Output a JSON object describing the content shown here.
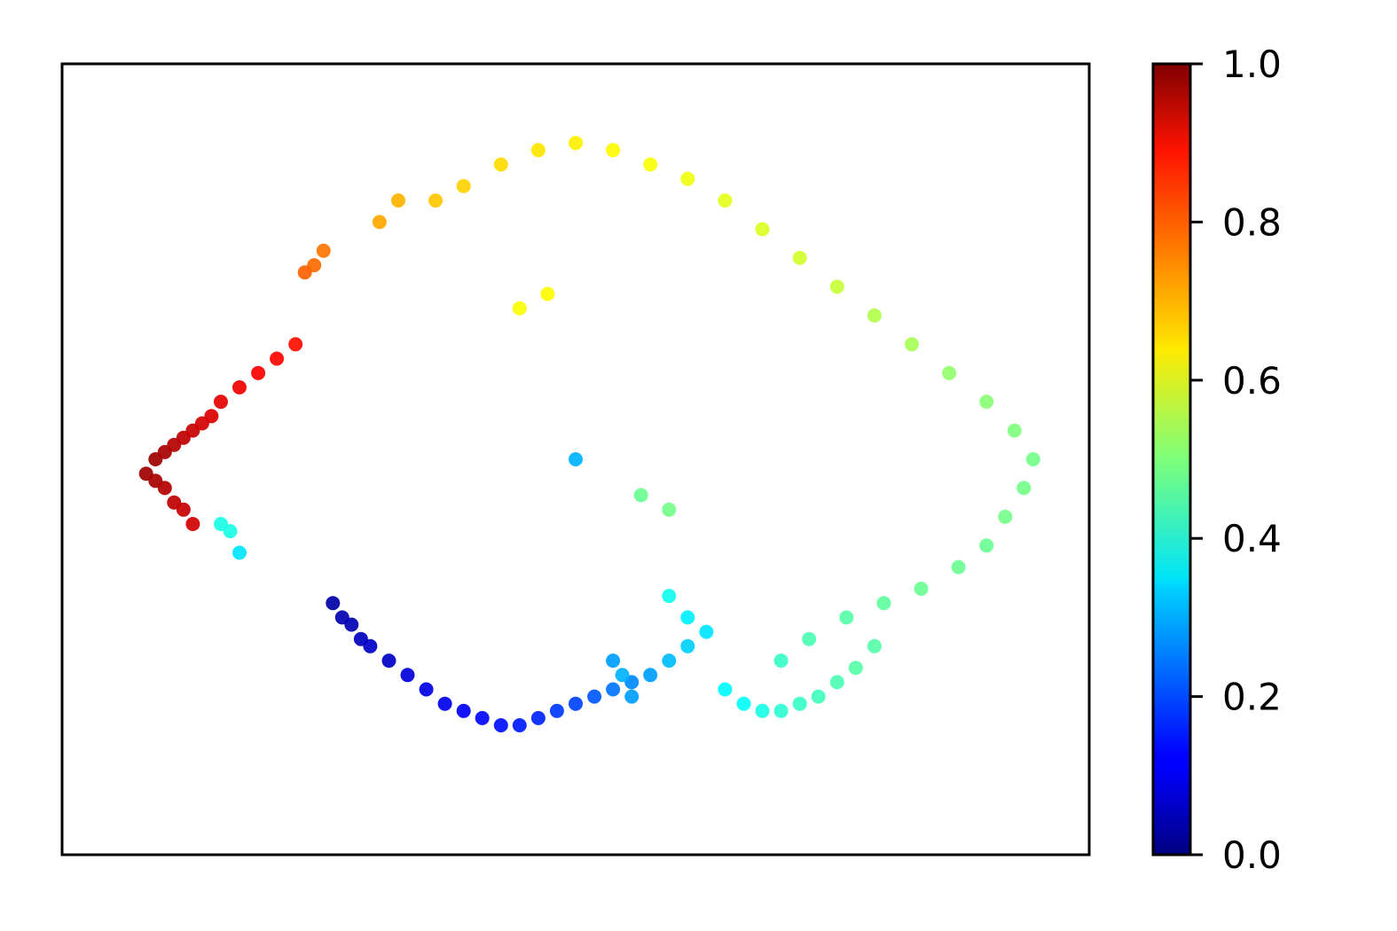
{
  "chart_data": {
    "type": "scatter",
    "title": "",
    "xlabel": "",
    "ylabel": "",
    "xticks": [],
    "yticks": [],
    "xlim": [
      -0.05,
      1.05
    ],
    "ylim": [
      -0.05,
      1.05
    ],
    "grid": false,
    "colormap": "jet",
    "colorbar": {
      "range": [
        0.0,
        1.0
      ],
      "ticks": [
        "0.0",
        "0.2",
        "0.4",
        "0.6",
        "0.8",
        "1.0"
      ],
      "position": "right"
    },
    "point_color_hint": "points colored by value along the trajectory: dark blue (0.0) at the bottom-left arc, through cyan/green on the right lobe, yellow at the top, orange and red (1.0) on the left arc",
    "series": [
      {
        "points": [
          [
            0.04,
            0.48,
            0.97
          ],
          [
            0.05,
            0.47,
            0.96
          ],
          [
            0.06,
            0.46,
            0.95
          ],
          [
            0.07,
            0.44,
            0.94
          ],
          [
            0.08,
            0.43,
            0.93
          ],
          [
            0.09,
            0.41,
            0.92
          ],
          [
            0.05,
            0.5,
            0.97
          ],
          [
            0.06,
            0.51,
            0.96
          ],
          [
            0.07,
            0.52,
            0.95
          ],
          [
            0.08,
            0.53,
            0.94
          ],
          [
            0.09,
            0.54,
            0.93
          ],
          [
            0.1,
            0.55,
            0.92
          ],
          [
            0.11,
            0.56,
            0.91
          ],
          [
            0.12,
            0.58,
            0.9
          ],
          [
            0.14,
            0.6,
            0.89
          ],
          [
            0.16,
            0.62,
            0.88
          ],
          [
            0.18,
            0.64,
            0.87
          ],
          [
            0.2,
            0.66,
            0.86
          ],
          [
            0.12,
            0.41,
            0.4
          ],
          [
            0.13,
            0.4,
            0.4
          ],
          [
            0.14,
            0.37,
            0.35
          ],
          [
            0.24,
            0.3,
            0.04
          ],
          [
            0.25,
            0.28,
            0.05
          ],
          [
            0.26,
            0.27,
            0.05
          ],
          [
            0.27,
            0.25,
            0.06
          ],
          [
            0.28,
            0.24,
            0.07
          ],
          [
            0.3,
            0.22,
            0.07
          ],
          [
            0.32,
            0.2,
            0.09
          ],
          [
            0.34,
            0.18,
            0.1
          ],
          [
            0.36,
            0.16,
            0.11
          ],
          [
            0.38,
            0.15,
            0.12
          ],
          [
            0.4,
            0.14,
            0.13
          ],
          [
            0.42,
            0.13,
            0.14
          ],
          [
            0.44,
            0.13,
            0.15
          ],
          [
            0.46,
            0.14,
            0.16
          ],
          [
            0.48,
            0.15,
            0.18
          ],
          [
            0.5,
            0.16,
            0.19
          ],
          [
            0.52,
            0.17,
            0.21
          ],
          [
            0.54,
            0.18,
            0.24
          ],
          [
            0.56,
            0.19,
            0.26
          ],
          [
            0.58,
            0.2,
            0.28
          ],
          [
            0.6,
            0.22,
            0.31
          ],
          [
            0.62,
            0.24,
            0.33
          ],
          [
            0.64,
            0.26,
            0.35
          ],
          [
            0.56,
            0.17,
            0.28
          ],
          [
            0.55,
            0.2,
            0.3
          ],
          [
            0.54,
            0.22,
            0.28
          ],
          [
            0.66,
            0.18,
            0.37
          ],
          [
            0.68,
            0.16,
            0.38
          ],
          [
            0.7,
            0.15,
            0.4
          ],
          [
            0.72,
            0.15,
            0.42
          ],
          [
            0.74,
            0.16,
            0.43
          ],
          [
            0.76,
            0.17,
            0.44
          ],
          [
            0.78,
            0.19,
            0.45
          ],
          [
            0.8,
            0.21,
            0.46
          ],
          [
            0.82,
            0.24,
            0.46
          ],
          [
            0.72,
            0.22,
            0.43
          ],
          [
            0.75,
            0.25,
            0.45
          ],
          [
            0.79,
            0.28,
            0.46
          ],
          [
            0.83,
            0.3,
            0.47
          ],
          [
            0.87,
            0.32,
            0.48
          ],
          [
            0.91,
            0.35,
            0.48
          ],
          [
            0.94,
            0.38,
            0.48
          ],
          [
            0.96,
            0.42,
            0.49
          ],
          [
            0.98,
            0.46,
            0.49
          ],
          [
            0.99,
            0.5,
            0.49
          ],
          [
            0.97,
            0.54,
            0.5
          ],
          [
            0.94,
            0.58,
            0.51
          ],
          [
            0.9,
            0.62,
            0.52
          ],
          [
            0.86,
            0.66,
            0.54
          ],
          [
            0.82,
            0.7,
            0.55
          ],
          [
            0.78,
            0.74,
            0.57
          ],
          [
            0.74,
            0.78,
            0.58
          ],
          [
            0.7,
            0.82,
            0.59
          ],
          [
            0.66,
            0.86,
            0.6
          ],
          [
            0.62,
            0.89,
            0.61
          ],
          [
            0.58,
            0.91,
            0.62
          ],
          [
            0.54,
            0.93,
            0.63
          ],
          [
            0.5,
            0.94,
            0.64
          ],
          [
            0.46,
            0.93,
            0.65
          ],
          [
            0.42,
            0.91,
            0.66
          ],
          [
            0.38,
            0.88,
            0.67
          ],
          [
            0.35,
            0.86,
            0.68
          ],
          [
            0.31,
            0.86,
            0.7
          ],
          [
            0.29,
            0.83,
            0.71
          ],
          [
            0.23,
            0.79,
            0.76
          ],
          [
            0.22,
            0.77,
            0.77
          ],
          [
            0.21,
            0.76,
            0.78
          ],
          [
            0.5,
            0.5,
            0.3
          ],
          [
            0.44,
            0.71,
            0.62
          ],
          [
            0.47,
            0.73,
            0.63
          ],
          [
            0.57,
            0.45,
            0.48
          ],
          [
            0.6,
            0.43,
            0.49
          ],
          [
            0.62,
            0.28,
            0.36
          ],
          [
            0.6,
            0.31,
            0.39
          ]
        ]
      }
    ]
  }
}
